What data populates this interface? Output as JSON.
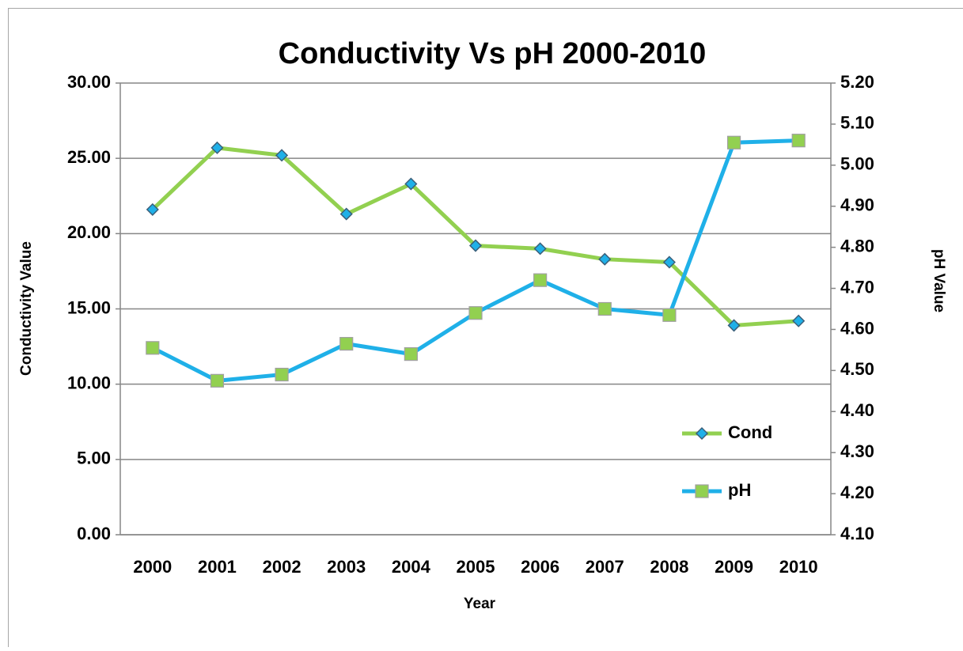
{
  "chart_data": {
    "type": "line",
    "title": "Conductivity Vs pH 2000-2010",
    "xlabel": "Year",
    "ylabel": "Conductivity Value",
    "y2label": "pH Value",
    "categories": [
      "2000",
      "2001",
      "2002",
      "2003",
      "2004",
      "2005",
      "2006",
      "2007",
      "2008",
      "2009",
      "2010"
    ],
    "series": [
      {
        "name": "Cond",
        "color": "#92d050",
        "marker": "diamond",
        "marker_color": "#1fb0e8",
        "values": [
          21.6,
          25.7,
          25.2,
          21.3,
          23.3,
          19.2,
          19.0,
          18.3,
          18.1,
          13.9,
          14.2
        ]
      },
      {
        "name": "pH",
        "color": "#1fb0e8",
        "marker": "square",
        "marker_color": "#92d050",
        "axis": "y2",
        "values": [
          4.555,
          4.475,
          4.49,
          4.565,
          4.54,
          4.64,
          4.72,
          4.65,
          4.635,
          5.055,
          5.06
        ]
      }
    ],
    "ylim": [
      0,
      30
    ],
    "yticks": [
      {
        "value": 0,
        "label": "0.00"
      },
      {
        "value": 5,
        "label": "5.00"
      },
      {
        "value": 10,
        "label": "10.00"
      },
      {
        "value": 15,
        "label": "15.00"
      },
      {
        "value": 20,
        "label": "20.00"
      },
      {
        "value": 25,
        "label": "25.00"
      },
      {
        "value": 30,
        "label": "30.00"
      }
    ],
    "y2lim": [
      4.1,
      5.2
    ],
    "y2ticks": [
      {
        "value": 4.1,
        "label": "4.10"
      },
      {
        "value": 4.2,
        "label": "4.20"
      },
      {
        "value": 4.3,
        "label": "4.30"
      },
      {
        "value": 4.4,
        "label": "4.40"
      },
      {
        "value": 4.5,
        "label": "4.50"
      },
      {
        "value": 4.6,
        "label": "4.60"
      },
      {
        "value": 4.7,
        "label": "4.70"
      },
      {
        "value": 4.8,
        "label": "4.80"
      },
      {
        "value": 4.9,
        "label": "4.90"
      },
      {
        "value": 5.0,
        "label": "5.00"
      },
      {
        "value": 5.1,
        "label": "5.10"
      },
      {
        "value": 5.2,
        "label": "5.20"
      }
    ],
    "grid": true,
    "legend": "right"
  }
}
